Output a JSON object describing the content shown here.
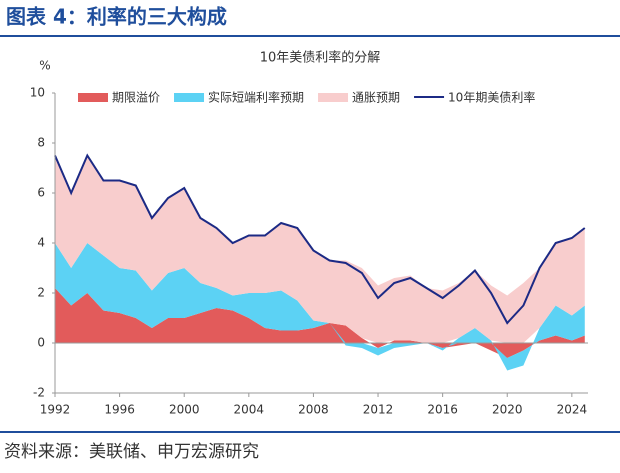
{
  "header": {
    "title": "图表 4：利率的三大构成"
  },
  "chart_data": {
    "type": "stacked_area_line",
    "title": "10年美债利率的分解",
    "y_label": "%",
    "x": [
      1992,
      1993,
      1994,
      1995,
      1996,
      1997,
      1998,
      1999,
      2000,
      2001,
      2002,
      2003,
      2004,
      2005,
      2006,
      2007,
      2008,
      2009,
      2010,
      2011,
      2012,
      2013,
      2014,
      2015,
      2016,
      2017,
      2018,
      2019,
      2020,
      2021,
      2022,
      2023,
      2024,
      2024.8
    ],
    "series": [
      {
        "name": "期限溢价",
        "color": "#e25b5b",
        "kind": "area",
        "values": [
          2.2,
          1.5,
          2.0,
          1.3,
          1.2,
          1.0,
          0.6,
          1.0,
          1.0,
          1.2,
          1.4,
          1.3,
          1.0,
          0.6,
          0.5,
          0.5,
          0.6,
          0.8,
          0.7,
          0.2,
          -0.2,
          0.1,
          0.1,
          0.0,
          -0.2,
          -0.1,
          0.0,
          -0.3,
          -0.6,
          -0.3,
          0.1,
          0.3,
          0.1,
          0.3
        ]
      },
      {
        "name": "实际短端利率预期",
        "color": "#5cd2f4",
        "kind": "area",
        "values": [
          1.8,
          1.5,
          2.0,
          2.2,
          1.8,
          1.9,
          1.5,
          1.8,
          2.0,
          1.2,
          0.8,
          0.6,
          1.0,
          1.4,
          1.6,
          1.2,
          0.3,
          0.0,
          -0.1,
          -0.2,
          -0.3,
          -0.2,
          -0.1,
          0.0,
          -0.1,
          0.2,
          0.6,
          0.1,
          -0.5,
          -0.6,
          0.5,
          1.2,
          1.0,
          1.2
        ]
      },
      {
        "name": "通胀预期",
        "color": "#f8cdcd",
        "kind": "area",
        "values": [
          3.5,
          3.0,
          3.5,
          3.0,
          3.5,
          3.4,
          2.9,
          3.0,
          3.2,
          2.6,
          2.4,
          2.1,
          2.3,
          2.3,
          2.7,
          2.9,
          2.8,
          2.5,
          2.6,
          2.8,
          2.3,
          2.5,
          2.6,
          2.2,
          2.1,
          2.2,
          2.3,
          2.2,
          1.9,
          2.4,
          2.4,
          2.5,
          3.1,
          3.1
        ]
      },
      {
        "name": "10年期美债利率",
        "color": "#1c2a85",
        "kind": "line",
        "values": [
          7.5,
          6.0,
          7.5,
          6.5,
          6.5,
          6.3,
          5.0,
          5.8,
          6.2,
          5.0,
          4.6,
          4.0,
          4.3,
          4.3,
          4.8,
          4.6,
          3.7,
          3.3,
          3.2,
          2.8,
          1.8,
          2.4,
          2.6,
          2.2,
          1.8,
          2.3,
          2.9,
          2.0,
          0.8,
          1.5,
          3.0,
          4.0,
          4.2,
          4.6
        ]
      }
    ],
    "xlim": [
      1992,
      2025
    ],
    "xticks": [
      1992,
      1996,
      2000,
      2004,
      2008,
      2012,
      2016,
      2020,
      2024
    ],
    "ylim": [
      -2,
      10
    ],
    "yticks": [
      -2,
      0,
      2,
      4,
      6,
      8,
      10
    ]
  },
  "footer": {
    "source": "资料来源：美联储、申万宏源研究"
  }
}
